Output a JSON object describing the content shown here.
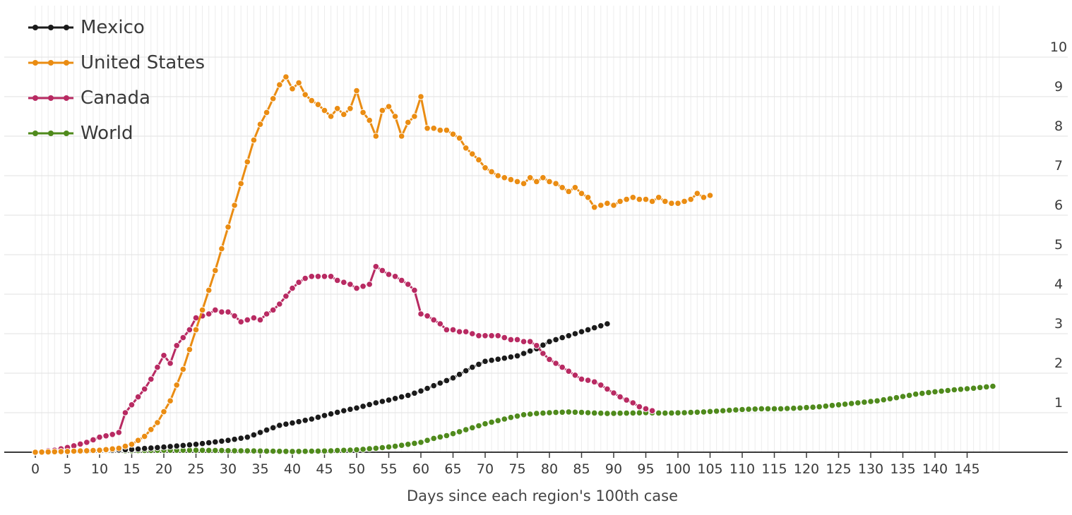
{
  "chart_data": {
    "type": "line",
    "xlabel": "Days since each region's 100th case",
    "ylabel": "",
    "xlim": [
      0,
      150
    ],
    "ylim": [
      0,
      10
    ],
    "x_ticks": [
      0,
      5,
      10,
      15,
      20,
      25,
      30,
      35,
      40,
      45,
      50,
      55,
      60,
      65,
      70,
      75,
      80,
      85,
      90,
      95,
      100,
      105,
      110,
      115,
      120,
      125,
      130,
      135,
      140,
      145
    ],
    "y_ticks": [
      1,
      2,
      3,
      4,
      5,
      6,
      7,
      8,
      9,
      10
    ],
    "y_axis_position": "right",
    "grid": true,
    "legend_position": "top-left",
    "series": [
      {
        "name": "Mexico",
        "color": "#1a1a1a",
        "points": [
          [
            0,
            0
          ],
          [
            5,
            0.02
          ],
          [
            10,
            0.04
          ],
          [
            15,
            0.07
          ],
          [
            20,
            0.13
          ],
          [
            25,
            0.2
          ],
          [
            30,
            0.3
          ],
          [
            33,
            0.38
          ],
          [
            35,
            0.5
          ],
          [
            38,
            0.68
          ],
          [
            40,
            0.74
          ],
          [
            43,
            0.84
          ],
          [
            45,
            0.93
          ],
          [
            48,
            1.05
          ],
          [
            50,
            1.12
          ],
          [
            53,
            1.25
          ],
          [
            55,
            1.32
          ],
          [
            58,
            1.44
          ],
          [
            60,
            1.55
          ],
          [
            63,
            1.75
          ],
          [
            65,
            1.88
          ],
          [
            68,
            2.15
          ],
          [
            70,
            2.3
          ],
          [
            73,
            2.38
          ],
          [
            75,
            2.44
          ],
          [
            78,
            2.62
          ],
          [
            80,
            2.8
          ],
          [
            83,
            2.95
          ],
          [
            85,
            3.05
          ],
          [
            87,
            3.15
          ],
          [
            89,
            3.25
          ]
        ]
      },
      {
        "name": "United States",
        "color": "#ea8c12",
        "points": [
          [
            0,
            0
          ],
          [
            5,
            0.02
          ],
          [
            10,
            0.05
          ],
          [
            13,
            0.1
          ],
          [
            15,
            0.2
          ],
          [
            17,
            0.4
          ],
          [
            19,
            0.75
          ],
          [
            21,
            1.3
          ],
          [
            23,
            2.1
          ],
          [
            25,
            3.1
          ],
          [
            26,
            3.6
          ],
          [
            28,
            4.6
          ],
          [
            30,
            5.7
          ],
          [
            32,
            6.8
          ],
          [
            34,
            7.9
          ],
          [
            35,
            8.3
          ],
          [
            36,
            8.6
          ],
          [
            37,
            8.95
          ],
          [
            38,
            9.3
          ],
          [
            39,
            9.5
          ],
          [
            40,
            9.2
          ],
          [
            41,
            9.35
          ],
          [
            42,
            9.05
          ],
          [
            43,
            8.9
          ],
          [
            44,
            8.8
          ],
          [
            45,
            8.65
          ],
          [
            46,
            8.5
          ],
          [
            47,
            8.7
          ],
          [
            48,
            8.55
          ],
          [
            49,
            8.7
          ],
          [
            50,
            9.15
          ],
          [
            51,
            8.6
          ],
          [
            52,
            8.4
          ],
          [
            53,
            8.0
          ],
          [
            54,
            8.65
          ],
          [
            55,
            8.75
          ],
          [
            56,
            8.5
          ],
          [
            57,
            8.0
          ],
          [
            58,
            8.35
          ],
          [
            59,
            8.5
          ],
          [
            60,
            9.0
          ],
          [
            61,
            8.2
          ],
          [
            62,
            8.2
          ],
          [
            63,
            8.15
          ],
          [
            64,
            8.15
          ],
          [
            65,
            8.05
          ],
          [
            66,
            7.95
          ],
          [
            67,
            7.7
          ],
          [
            68,
            7.55
          ],
          [
            69,
            7.4
          ],
          [
            70,
            7.2
          ],
          [
            71,
            7.1
          ],
          [
            72,
            7.0
          ],
          [
            73,
            6.95
          ],
          [
            74,
            6.9
          ],
          [
            75,
            6.85
          ],
          [
            76,
            6.8
          ],
          [
            77,
            6.95
          ],
          [
            78,
            6.85
          ],
          [
            79,
            6.95
          ],
          [
            80,
            6.85
          ],
          [
            81,
            6.8
          ],
          [
            82,
            6.7
          ],
          [
            83,
            6.6
          ],
          [
            84,
            6.7
          ],
          [
            85,
            6.55
          ],
          [
            86,
            6.45
          ],
          [
            87,
            6.2
          ],
          [
            88,
            6.25
          ],
          [
            89,
            6.3
          ],
          [
            90,
            6.25
          ],
          [
            91,
            6.35
          ],
          [
            92,
            6.4
          ],
          [
            93,
            6.45
          ],
          [
            94,
            6.4
          ],
          [
            95,
            6.4
          ],
          [
            96,
            6.35
          ],
          [
            97,
            6.45
          ],
          [
            98,
            6.35
          ],
          [
            99,
            6.3
          ],
          [
            100,
            6.3
          ],
          [
            101,
            6.35
          ],
          [
            102,
            6.4
          ],
          [
            103,
            6.55
          ],
          [
            104,
            6.45
          ],
          [
            105,
            6.5
          ]
        ]
      },
      {
        "name": "Canada",
        "color": "#b82a62",
        "points": [
          [
            0,
            0
          ],
          [
            3,
            0.05
          ],
          [
            5,
            0.12
          ],
          [
            8,
            0.25
          ],
          [
            10,
            0.38
          ],
          [
            12,
            0.45
          ],
          [
            13,
            0.5
          ],
          [
            14,
            1.0
          ],
          [
            15,
            1.2
          ],
          [
            16,
            1.4
          ],
          [
            17,
            1.6
          ],
          [
            18,
            1.85
          ],
          [
            19,
            2.15
          ],
          [
            20,
            2.45
          ],
          [
            21,
            2.25
          ],
          [
            22,
            2.7
          ],
          [
            23,
            2.9
          ],
          [
            24,
            3.1
          ],
          [
            25,
            3.4
          ],
          [
            26,
            3.45
          ],
          [
            27,
            3.5
          ],
          [
            28,
            3.6
          ],
          [
            29,
            3.55
          ],
          [
            30,
            3.55
          ],
          [
            31,
            3.45
          ],
          [
            32,
            3.3
          ],
          [
            33,
            3.35
          ],
          [
            34,
            3.4
          ],
          [
            35,
            3.35
          ],
          [
            36,
            3.5
          ],
          [
            37,
            3.6
          ],
          [
            38,
            3.75
          ],
          [
            39,
            3.95
          ],
          [
            40,
            4.15
          ],
          [
            41,
            4.3
          ],
          [
            42,
            4.4
          ],
          [
            43,
            4.45
          ],
          [
            44,
            4.45
          ],
          [
            45,
            4.45
          ],
          [
            46,
            4.45
          ],
          [
            47,
            4.35
          ],
          [
            48,
            4.3
          ],
          [
            49,
            4.25
          ],
          [
            50,
            4.15
          ],
          [
            51,
            4.2
          ],
          [
            52,
            4.25
          ],
          [
            53,
            4.7
          ],
          [
            54,
            4.6
          ],
          [
            55,
            4.5
          ],
          [
            56,
            4.45
          ],
          [
            57,
            4.35
          ],
          [
            58,
            4.25
          ],
          [
            59,
            4.1
          ],
          [
            60,
            3.5
          ],
          [
            61,
            3.45
          ],
          [
            62,
            3.35
          ],
          [
            63,
            3.25
          ],
          [
            64,
            3.1
          ],
          [
            65,
            3.1
          ],
          [
            66,
            3.05
          ],
          [
            67,
            3.05
          ],
          [
            68,
            3.0
          ],
          [
            69,
            2.95
          ],
          [
            70,
            2.95
          ],
          [
            71,
            2.95
          ],
          [
            72,
            2.95
          ],
          [
            73,
            2.9
          ],
          [
            74,
            2.85
          ],
          [
            75,
            2.85
          ],
          [
            76,
            2.8
          ],
          [
            77,
            2.8
          ],
          [
            78,
            2.7
          ],
          [
            79,
            2.5
          ],
          [
            80,
            2.35
          ],
          [
            81,
            2.25
          ],
          [
            82,
            2.15
          ],
          [
            83,
            2.05
          ],
          [
            84,
            1.95
          ],
          [
            85,
            1.85
          ],
          [
            86,
            1.82
          ],
          [
            87,
            1.78
          ],
          [
            88,
            1.7
          ],
          [
            89,
            1.6
          ],
          [
            90,
            1.5
          ],
          [
            91,
            1.4
          ],
          [
            92,
            1.32
          ],
          [
            93,
            1.25
          ],
          [
            94,
            1.15
          ],
          [
            95,
            1.1
          ],
          [
            96,
            1.05
          ]
        ]
      },
      {
        "name": "World",
        "color": "#4f8a1c",
        "points": [
          [
            0,
            0
          ],
          [
            5,
            0.02
          ],
          [
            10,
            0.03
          ],
          [
            15,
            0.04
          ],
          [
            20,
            0.05
          ],
          [
            25,
            0.05
          ],
          [
            30,
            0.04
          ],
          [
            35,
            0.03
          ],
          [
            40,
            0.02
          ],
          [
            45,
            0.03
          ],
          [
            50,
            0.06
          ],
          [
            53,
            0.1
          ],
          [
            56,
            0.15
          ],
          [
            58,
            0.2
          ],
          [
            60,
            0.25
          ],
          [
            62,
            0.35
          ],
          [
            64,
            0.42
          ],
          [
            66,
            0.52
          ],
          [
            68,
            0.62
          ],
          [
            70,
            0.72
          ],
          [
            72,
            0.8
          ],
          [
            74,
            0.88
          ],
          [
            76,
            0.95
          ],
          [
            78,
            0.98
          ],
          [
            80,
            1.0
          ],
          [
            83,
            1.02
          ],
          [
            86,
            1.0
          ],
          [
            89,
            0.98
          ],
          [
            92,
            0.99
          ],
          [
            95,
            1.0
          ],
          [
            98,
            0.99
          ],
          [
            101,
            1.0
          ],
          [
            104,
            1.02
          ],
          [
            107,
            1.05
          ],
          [
            110,
            1.08
          ],
          [
            113,
            1.1
          ],
          [
            116,
            1.1
          ],
          [
            119,
            1.12
          ],
          [
            122,
            1.15
          ],
          [
            125,
            1.2
          ],
          [
            128,
            1.25
          ],
          [
            131,
            1.3
          ],
          [
            134,
            1.38
          ],
          [
            137,
            1.47
          ],
          [
            140,
            1.53
          ],
          [
            143,
            1.58
          ],
          [
            146,
            1.62
          ],
          [
            149,
            1.67
          ]
        ]
      }
    ]
  }
}
